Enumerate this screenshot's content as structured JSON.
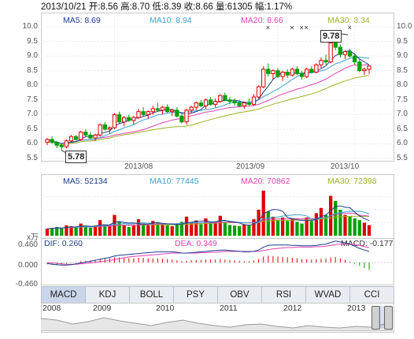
{
  "header": {
    "date": "2013/10/21",
    "open_label": "开:",
    "open": "8.56",
    "high_label": "高:",
    "high": "8.70",
    "low_label": "低:",
    "low": "8.39",
    "close_label": "收:",
    "close": "8.66",
    "volume_label": "量:",
    "volume": "61305",
    "change_label": "幅:",
    "change": "1.17%"
  },
  "price_panel": {
    "ma5": "MA5: 8.69",
    "ma10": "MA10: 8.94",
    "ma20": "MA20: 8.66",
    "ma30": "MA30: 8.34",
    "y_ticks": [
      "10.0",
      "9.5",
      "9.0",
      "8.5",
      "8.0",
      "7.5",
      "7.0",
      "6.5",
      "6.0",
      "5.5"
    ],
    "x_ticks": [
      "2013/08",
      "2013/09",
      "2013/10"
    ],
    "high_callout": "9.78",
    "low_callout": "5.78"
  },
  "volume_panel": {
    "ma5": "MA5: 52134",
    "ma10": "MA10: 77445",
    "ma20": "MA20: 70862",
    "ma30": "MA30: 72398",
    "unit": "x万"
  },
  "macd_panel": {
    "dif": "DIF: 0.260",
    "dea": "DEA: 0.349",
    "macd": "MACD: -0.177",
    "y_ticks": [
      "0.460",
      "0.000",
      "-0.460"
    ]
  },
  "tabs": [
    "MACD",
    "KDJ",
    "BOLL",
    "PSY",
    "OBV",
    "RSI",
    "WVAD",
    "CCI"
  ],
  "navigator_years": [
    "2008",
    "2009",
    "2010",
    "2011",
    "2012",
    "2013"
  ],
  "colors": {
    "up": "#e00000",
    "down": "#00a000",
    "ma5": "#1c3c8c",
    "ma10": "#3aa0d0",
    "ma20": "#e040b0",
    "ma30": "#a0b020"
  },
  "chart_data": {
    "type": "candlestick",
    "price_ylim": [
      5.5,
      10.0
    ],
    "candles": [
      [
        6.05,
        6.2,
        5.95,
        6.15
      ],
      [
        6.15,
        6.25,
        6.0,
        6.05
      ],
      [
        6.05,
        6.1,
        5.85,
        5.95
      ],
      [
        5.95,
        6.0,
        5.78,
        5.9
      ],
      [
        5.9,
        6.15,
        5.85,
        6.1
      ],
      [
        6.1,
        6.3,
        6.05,
        6.25
      ],
      [
        6.25,
        6.3,
        6.1,
        6.15
      ],
      [
        6.15,
        6.45,
        6.1,
        6.4
      ],
      [
        6.4,
        6.5,
        6.25,
        6.3
      ],
      [
        6.3,
        6.4,
        6.15,
        6.2
      ],
      [
        6.2,
        6.35,
        6.1,
        6.3
      ],
      [
        6.3,
        6.7,
        6.25,
        6.65
      ],
      [
        6.65,
        6.75,
        6.45,
        6.5
      ],
      [
        6.5,
        6.6,
        6.35,
        6.55
      ],
      [
        6.55,
        7.05,
        6.5,
        7.0
      ],
      [
        7.0,
        7.1,
        6.7,
        6.75
      ],
      [
        6.75,
        6.95,
        6.6,
        6.9
      ],
      [
        6.9,
        7.0,
        6.75,
        6.8
      ],
      [
        6.8,
        6.95,
        6.65,
        6.9
      ],
      [
        6.9,
        7.2,
        6.85,
        7.1
      ],
      [
        7.1,
        7.25,
        6.95,
        7.0
      ],
      [
        7.0,
        7.15,
        6.85,
        7.1
      ],
      [
        7.1,
        7.3,
        7.0,
        7.2
      ],
      [
        7.2,
        7.4,
        7.1,
        7.15
      ],
      [
        7.15,
        7.3,
        7.0,
        7.25
      ],
      [
        7.25,
        7.35,
        7.05,
        7.1
      ],
      [
        7.1,
        7.2,
        6.95,
        7.15
      ],
      [
        7.15,
        7.25,
        6.9,
        6.95
      ],
      [
        6.95,
        7.05,
        6.7,
        6.75
      ],
      [
        6.75,
        7.2,
        6.65,
        7.15
      ],
      [
        7.15,
        7.3,
        7.05,
        7.25
      ],
      [
        7.25,
        7.45,
        7.15,
        7.4
      ],
      [
        7.4,
        7.5,
        7.25,
        7.3
      ],
      [
        7.3,
        7.55,
        7.2,
        7.5
      ],
      [
        7.5,
        7.6,
        7.3,
        7.35
      ],
      [
        7.35,
        7.55,
        7.25,
        7.45
      ],
      [
        7.45,
        7.7,
        7.4,
        7.65
      ],
      [
        7.65,
        7.75,
        7.45,
        7.5
      ],
      [
        7.5,
        7.6,
        7.35,
        7.45
      ],
      [
        7.45,
        7.55,
        7.3,
        7.4
      ],
      [
        7.4,
        7.5,
        7.25,
        7.3
      ],
      [
        7.3,
        7.45,
        7.2,
        7.4
      ],
      [
        7.4,
        7.55,
        7.3,
        7.35
      ],
      [
        7.35,
        7.7,
        7.3,
        7.6
      ],
      [
        7.6,
        8.0,
        7.55,
        7.95
      ],
      [
        7.95,
        8.65,
        7.9,
        8.55
      ],
      [
        8.55,
        8.75,
        8.3,
        8.4
      ],
      [
        8.4,
        8.55,
        8.2,
        8.5
      ],
      [
        8.5,
        8.6,
        8.25,
        8.3
      ],
      [
        8.3,
        8.5,
        8.15,
        8.45
      ],
      [
        8.45,
        8.55,
        8.25,
        8.35
      ],
      [
        8.35,
        8.6,
        8.3,
        8.55
      ],
      [
        8.55,
        8.65,
        8.35,
        8.4
      ],
      [
        8.4,
        8.5,
        8.2,
        8.3
      ],
      [
        8.3,
        8.6,
        8.25,
        8.55
      ],
      [
        8.55,
        8.65,
        8.4,
        8.45
      ],
      [
        8.45,
        8.75,
        8.4,
        8.7
      ],
      [
        8.7,
        8.95,
        8.6,
        8.85
      ],
      [
        8.85,
        9.05,
        8.7,
        8.8
      ],
      [
        8.8,
        9.5,
        8.75,
        9.45
      ],
      [
        9.45,
        9.78,
        9.2,
        9.3
      ],
      [
        9.3,
        9.4,
        8.95,
        9.05
      ],
      [
        9.05,
        9.2,
        8.9,
        9.15
      ],
      [
        9.15,
        9.25,
        8.95,
        9.0
      ],
      [
        9.0,
        9.1,
        8.7,
        8.8
      ],
      [
        8.8,
        8.9,
        8.45,
        8.5
      ],
      [
        8.5,
        8.6,
        8.35,
        8.55
      ],
      [
        8.55,
        8.7,
        8.39,
        8.66
      ]
    ],
    "volume_ylim": [
      0,
      300000
    ],
    "volume": [
      40000,
      45000,
      50000,
      42000,
      60000,
      55000,
      48000,
      70000,
      52000,
      46000,
      58000,
      90000,
      65000,
      55000,
      120000,
      80000,
      62000,
      50000,
      58000,
      95000,
      70000,
      60000,
      85000,
      75000,
      64000,
      60000,
      55000,
      70000,
      80000,
      110000,
      72000,
      88000,
      66000,
      100000,
      70000,
      82000,
      115000,
      78000,
      62000,
      58000,
      55000,
      65000,
      60000,
      95000,
      150000,
      260000,
      140000,
      110000,
      90000,
      105000,
      85000,
      100000,
      80000,
      70000,
      105000,
      85000,
      130000,
      160000,
      120000,
      230000,
      200000,
      150000,
      120000,
      110000,
      100000,
      90000,
      75000,
      61305
    ],
    "macd_ylim": [
      -0.46,
      0.46
    ],
    "macd_hist": [
      -0.04,
      -0.05,
      -0.06,
      -0.05,
      -0.03,
      -0.01,
      0.01,
      0.03,
      0.04,
      0.05,
      0.06,
      0.08,
      0.09,
      0.1,
      0.12,
      0.12,
      0.11,
      0.1,
      0.1,
      0.11,
      0.11,
      0.1,
      0.1,
      0.1,
      0.09,
      0.08,
      0.07,
      0.05,
      0.03,
      0.04,
      0.05,
      0.06,
      0.06,
      0.07,
      0.07,
      0.07,
      0.08,
      0.07,
      0.06,
      0.05,
      0.04,
      0.03,
      0.03,
      0.05,
      0.08,
      0.14,
      0.16,
      0.15,
      0.14,
      0.13,
      0.12,
      0.11,
      0.1,
      0.08,
      0.08,
      0.07,
      0.08,
      0.09,
      0.09,
      0.12,
      0.13,
      0.1,
      0.06,
      0.02,
      -0.03,
      -0.08,
      -0.13,
      -0.177
    ],
    "dif": [
      -0.02,
      -0.04,
      -0.05,
      -0.06,
      -0.06,
      -0.05,
      -0.03,
      -0.01,
      0.01,
      0.03,
      0.05,
      0.08,
      0.1,
      0.12,
      0.15,
      0.17,
      0.18,
      0.19,
      0.2,
      0.21,
      0.22,
      0.23,
      0.24,
      0.25,
      0.25,
      0.25,
      0.25,
      0.24,
      0.22,
      0.22,
      0.23,
      0.24,
      0.25,
      0.26,
      0.27,
      0.28,
      0.29,
      0.29,
      0.28,
      0.27,
      0.26,
      0.25,
      0.25,
      0.26,
      0.29,
      0.36,
      0.4,
      0.41,
      0.41,
      0.41,
      0.41,
      0.4,
      0.4,
      0.39,
      0.39,
      0.39,
      0.4,
      0.42,
      0.43,
      0.47,
      0.5,
      0.48,
      0.46,
      0.43,
      0.38,
      0.33,
      0.29,
      0.26
    ],
    "dea": [
      0.0,
      -0.01,
      -0.02,
      -0.03,
      -0.04,
      -0.04,
      -0.04,
      -0.03,
      -0.02,
      -0.01,
      0.0,
      0.02,
      0.03,
      0.05,
      0.07,
      0.09,
      0.11,
      0.13,
      0.14,
      0.15,
      0.16,
      0.17,
      0.18,
      0.19,
      0.2,
      0.21,
      0.22,
      0.22,
      0.22,
      0.22,
      0.22,
      0.22,
      0.23,
      0.23,
      0.24,
      0.24,
      0.25,
      0.26,
      0.26,
      0.26,
      0.26,
      0.26,
      0.26,
      0.26,
      0.26,
      0.28,
      0.3,
      0.32,
      0.33,
      0.34,
      0.35,
      0.35,
      0.36,
      0.36,
      0.36,
      0.36,
      0.37,
      0.37,
      0.38,
      0.4,
      0.42,
      0.43,
      0.43,
      0.43,
      0.42,
      0.4,
      0.37,
      0.349
    ]
  }
}
